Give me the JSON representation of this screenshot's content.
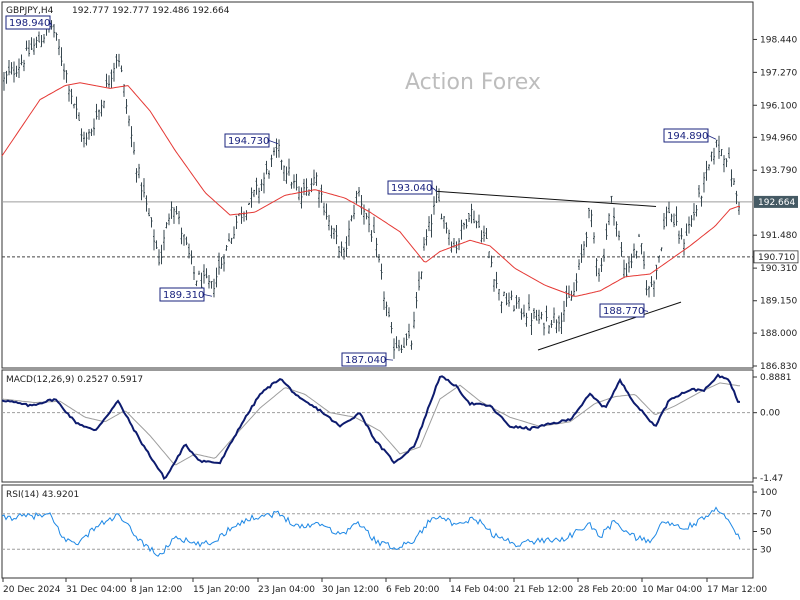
{
  "header": {
    "symbol": "GBPJPY,H4",
    "ohlc": "192.777 192.777 192.486 192.664"
  },
  "watermark": "Action Forex",
  "colors": {
    "bars": "#37474f",
    "ma": "#e53935",
    "macd": "#0d1b6e",
    "signal": "#9e9e9e",
    "rsi": "#1e88e5",
    "callout_border": "#1a237e",
    "price_label_bg": "#455a64"
  },
  "chart_data": [
    {
      "type": "candlestick",
      "panel": "price",
      "ylim": [
        186.83,
        199.7
      ],
      "y_ticks": [
        "198.440",
        "197.270",
        "196.100",
        "194.960",
        "193.790",
        "192.664",
        "191.480",
        "190.710",
        "190.310",
        "189.150",
        "188.000",
        "186.830"
      ],
      "x_ticks": [
        "20 Dec 2024",
        "31 Dec 04:00",
        "8 Jan 12:00",
        "15 Jan 20:00",
        "23 Jan 04:00",
        "30 Jan 12:00",
        "6 Feb 20:00",
        "14 Feb 04:00",
        "21 Feb 12:00",
        "28 Feb 20:00",
        "10 Mar 04:00",
        "17 Mar 12:00"
      ],
      "current_price": "192.664",
      "reference_level": "190.710",
      "callouts": [
        {
          "label": "198.940",
          "bar": 52,
          "price": 198.94
        },
        {
          "label": "194.730",
          "bar": 278,
          "price": 194.73
        },
        {
          "label": "189.310",
          "bar": 212,
          "price": 189.31
        },
        {
          "label": "187.040",
          "bar": 393,
          "price": 187.04
        },
        {
          "label": "193.040",
          "bar": 437,
          "price": 193.04
        },
        {
          "label": "188.770",
          "bar": 648,
          "price": 188.77
        },
        {
          "label": "194.890",
          "bar": 716,
          "price": 194.89
        }
      ],
      "trendlines": [
        {
          "from": {
            "bar": 437,
            "price": 193.04
          },
          "to": {
            "bar": 656,
            "price": 192.5
          }
        },
        {
          "from": {
            "bar": 538,
            "price": 187.4
          },
          "to": {
            "bar": 681,
            "price": 189.1
          }
        }
      ],
      "price_anchors": [
        [
          2,
          196.9
        ],
        [
          20,
          197.6
        ],
        [
          52,
          198.94
        ],
        [
          68,
          197.0
        ],
        [
          85,
          194.7
        ],
        [
          100,
          196.0
        ],
        [
          118,
          198.0
        ],
        [
          135,
          194.2
        ],
        [
          160,
          190.5
        ],
        [
          172,
          192.8
        ],
        [
          195,
          190.0
        ],
        [
          212,
          189.6
        ],
        [
          238,
          192.1
        ],
        [
          260,
          193.2
        ],
        [
          278,
          194.5
        ],
        [
          300,
          192.8
        ],
        [
          316,
          193.6
        ],
        [
          330,
          191.8
        ],
        [
          344,
          190.7
        ],
        [
          358,
          193.1
        ],
        [
          375,
          191.2
        ],
        [
          393,
          187.6
        ],
        [
          412,
          187.7
        ],
        [
          424,
          191.0
        ],
        [
          437,
          192.8
        ],
        [
          455,
          191.0
        ],
        [
          470,
          192.4
        ],
        [
          486,
          191.3
        ],
        [
          500,
          189.3
        ],
        [
          520,
          188.9
        ],
        [
          540,
          188.4
        ],
        [
          560,
          188.6
        ],
        [
          575,
          189.5
        ],
        [
          590,
          192.3
        ],
        [
          600,
          190.0
        ],
        [
          612,
          192.8
        ],
        [
          625,
          190.1
        ],
        [
          640,
          191.3
        ],
        [
          648,
          189.4
        ],
        [
          656,
          190.2
        ],
        [
          668,
          192.5
        ],
        [
          682,
          191.2
        ],
        [
          697,
          192.5
        ],
        [
          705,
          193.4
        ],
        [
          716,
          194.7
        ],
        [
          727,
          194.3
        ],
        [
          738,
          192.66
        ]
      ],
      "ma_anchors": [
        [
          2,
          194.3
        ],
        [
          40,
          196.3
        ],
        [
          65,
          196.8
        ],
        [
          80,
          196.9
        ],
        [
          110,
          196.7
        ],
        [
          128,
          196.8
        ],
        [
          150,
          195.9
        ],
        [
          175,
          194.5
        ],
        [
          205,
          193.0
        ],
        [
          230,
          192.2
        ],
        [
          255,
          192.3
        ],
        [
          285,
          192.9
        ],
        [
          315,
          193.1
        ],
        [
          345,
          192.8
        ],
        [
          370,
          192.3
        ],
        [
          400,
          191.6
        ],
        [
          425,
          190.5
        ],
        [
          440,
          190.9
        ],
        [
          470,
          191.3
        ],
        [
          490,
          191.1
        ],
        [
          515,
          190.3
        ],
        [
          545,
          189.7
        ],
        [
          575,
          189.3
        ],
        [
          600,
          189.5
        ],
        [
          625,
          190.0
        ],
        [
          650,
          190.1
        ],
        [
          670,
          190.6
        ],
        [
          690,
          191.1
        ],
        [
          715,
          191.8
        ],
        [
          730,
          192.4
        ],
        [
          738,
          192.5
        ]
      ]
    },
    {
      "type": "line",
      "panel": "macd",
      "label": "MACD(12,26,9) 0.2527 0.5917",
      "ylim": [
        -1.47,
        0.8881
      ],
      "y_ticks": [
        "0.8881",
        "0.00",
        "-1.47"
      ],
      "macd_anchors": [
        [
          2,
          0.28
        ],
        [
          30,
          0.15
        ],
        [
          55,
          0.3
        ],
        [
          75,
          -0.2
        ],
        [
          95,
          -0.4
        ],
        [
          118,
          0.25
        ],
        [
          140,
          -0.6
        ],
        [
          165,
          -1.45
        ],
        [
          185,
          -0.7
        ],
        [
          200,
          -1.05
        ],
        [
          220,
          -1.1
        ],
        [
          240,
          -0.3
        ],
        [
          260,
          0.4
        ],
        [
          280,
          0.75
        ],
        [
          300,
          0.3
        ],
        [
          320,
          0.05
        ],
        [
          340,
          -0.3
        ],
        [
          360,
          0.0
        ],
        [
          375,
          -0.6
        ],
        [
          395,
          -1.1
        ],
        [
          415,
          -0.7
        ],
        [
          430,
          0.2
        ],
        [
          440,
          0.8
        ],
        [
          455,
          0.6
        ],
        [
          470,
          0.2
        ],
        [
          490,
          0.15
        ],
        [
          510,
          -0.3
        ],
        [
          530,
          -0.35
        ],
        [
          550,
          -0.25
        ],
        [
          570,
          -0.15
        ],
        [
          590,
          0.4
        ],
        [
          605,
          0.1
        ],
        [
          620,
          0.7
        ],
        [
          635,
          0.2
        ],
        [
          655,
          -0.3
        ],
        [
          670,
          0.3
        ],
        [
          690,
          0.5
        ],
        [
          705,
          0.5
        ],
        [
          718,
          0.8
        ],
        [
          728,
          0.75
        ],
        [
          738,
          0.25
        ]
      ],
      "signal_anchors": [
        [
          2,
          0.3
        ],
        [
          35,
          0.22
        ],
        [
          60,
          0.25
        ],
        [
          85,
          -0.1
        ],
        [
          105,
          -0.2
        ],
        [
          125,
          0.05
        ],
        [
          150,
          -0.5
        ],
        [
          175,
          -1.15
        ],
        [
          195,
          -0.9
        ],
        [
          215,
          -1.0
        ],
        [
          235,
          -0.5
        ],
        [
          260,
          0.1
        ],
        [
          285,
          0.55
        ],
        [
          305,
          0.4
        ],
        [
          330,
          0.0
        ],
        [
          355,
          -0.1
        ],
        [
          380,
          -0.4
        ],
        [
          400,
          -0.9
        ],
        [
          420,
          -0.75
        ],
        [
          440,
          0.3
        ],
        [
          460,
          0.6
        ],
        [
          480,
          0.25
        ],
        [
          510,
          -0.1
        ],
        [
          540,
          -0.3
        ],
        [
          570,
          -0.2
        ],
        [
          595,
          0.2
        ],
        [
          615,
          0.35
        ],
        [
          635,
          0.4
        ],
        [
          655,
          -0.05
        ],
        [
          675,
          0.15
        ],
        [
          700,
          0.45
        ],
        [
          720,
          0.65
        ],
        [
          738,
          0.59
        ]
      ]
    },
    {
      "type": "line",
      "panel": "rsi",
      "label": "RSI(14) 43.9201",
      "ylim": [
        0,
        100
      ],
      "y_ticks": [
        "100",
        "70",
        "50",
        "30"
      ],
      "rsi_anchors": [
        [
          2,
          65
        ],
        [
          25,
          67
        ],
        [
          50,
          68
        ],
        [
          65,
          40
        ],
        [
          80,
          38
        ],
        [
          95,
          55
        ],
        [
          118,
          68
        ],
        [
          140,
          40
        ],
        [
          160,
          22
        ],
        [
          175,
          45
        ],
        [
          195,
          35
        ],
        [
          212,
          37
        ],
        [
          235,
          58
        ],
        [
          260,
          68
        ],
        [
          278,
          70
        ],
        [
          300,
          55
        ],
        [
          320,
          60
        ],
        [
          340,
          46
        ],
        [
          358,
          60
        ],
        [
          375,
          40
        ],
        [
          393,
          32
        ],
        [
          412,
          38
        ],
        [
          430,
          62
        ],
        [
          440,
          70
        ],
        [
          455,
          55
        ],
        [
          475,
          65
        ],
        [
          495,
          45
        ],
        [
          515,
          36
        ],
        [
          540,
          40
        ],
        [
          565,
          42
        ],
        [
          590,
          58
        ],
        [
          600,
          44
        ],
        [
          615,
          62
        ],
        [
          630,
          46
        ],
        [
          648,
          38
        ],
        [
          665,
          62
        ],
        [
          682,
          52
        ],
        [
          700,
          62
        ],
        [
          716,
          74
        ],
        [
          728,
          67
        ],
        [
          738,
          44
        ]
      ]
    }
  ]
}
